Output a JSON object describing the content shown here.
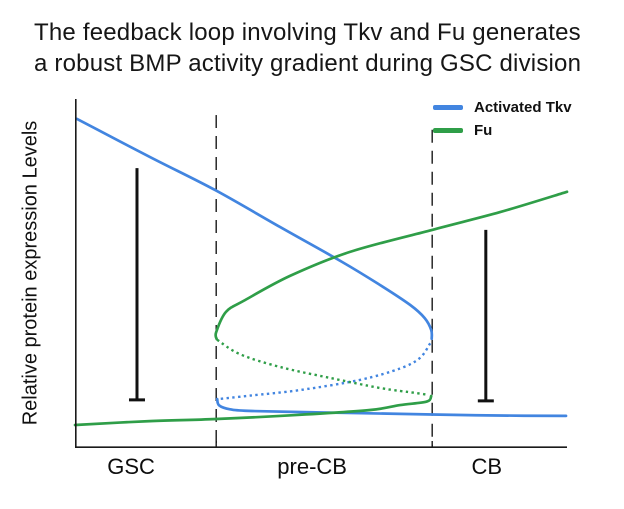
{
  "title": {
    "line1": "The feedback loop involving Tkv and Fu generates",
    "line2": "a robust BMP activity gradient during GSC division"
  },
  "y_axis_label": "Relative protein expression Levels",
  "x_axis": {
    "categories": [
      {
        "label": "GSC",
        "center_pct": 11.4
      },
      {
        "label": "pre-CB",
        "center_pct": 48.2
      },
      {
        "label": "CB",
        "center_pct": 83.7
      }
    ]
  },
  "legend": {
    "position": "top-right",
    "items": [
      {
        "label": "Activated Tkv",
        "color": "#4285e0"
      },
      {
        "label": "Fu",
        "color": "#2f9e48"
      }
    ]
  },
  "colors": {
    "activated_tkv": "#4285e0",
    "fu": "#2f9e48",
    "axis": "#1a1a1a",
    "boundary_dash": "#1a1a1a",
    "range_bar": "#111111",
    "background": "#ffffff"
  },
  "chart_data": {
    "type": "line",
    "title": "The feedback loop involving Tkv and Fu generates a robust BMP activity gradient during GSC division",
    "xlabel": "",
    "ylabel": "Relative protein expression Levels",
    "x_categories": [
      "GSC",
      "pre-CB",
      "CB"
    ],
    "axes_quantitative": false,
    "grid": false,
    "legend_position": "top-right",
    "units_note": "points are percent of plot area: x 0=left axis, 100=right edge; y 0=x-axis, 100=top",
    "stage_boundaries": [
      {
        "x": 28.7,
        "y_top": 95.4
      },
      {
        "x": 72.6,
        "y_top": 91.2
      }
    ],
    "series": [
      {
        "id": "tkv-high-branch",
        "name": "Activated Tkv — high stable branch",
        "legend": "Activated Tkv",
        "color": "#4285e0",
        "style": "solid",
        "points": [
          [
            0.4,
            94.3
          ],
          [
            15.2,
            83.4
          ],
          [
            28.5,
            73.9
          ],
          [
            41.7,
            63.3
          ],
          [
            54.3,
            53.3
          ],
          [
            62.0,
            46.7
          ],
          [
            68.1,
            41.0
          ],
          [
            71.1,
            37.2
          ],
          [
            72.4,
            33.8
          ],
          [
            72.5,
            31.3
          ]
        ]
      },
      {
        "id": "tkv-unstable-branch",
        "name": "Activated Tkv — unstable branch (dotted)",
        "legend": "Activated Tkv",
        "color": "#4285e0",
        "style": "dotted",
        "points": [
          [
            72.2,
            30.0
          ],
          [
            70.1,
            25.8
          ],
          [
            66.1,
            22.8
          ],
          [
            57.9,
            19.5
          ],
          [
            45.7,
            16.6
          ],
          [
            35.6,
            15.0
          ],
          [
            28.9,
            14.0
          ]
        ]
      },
      {
        "id": "tkv-low-branch",
        "name": "Activated Tkv — low stable branch",
        "legend": "Activated Tkv",
        "color": "#4285e0",
        "style": "solid",
        "points": [
          [
            28.9,
            14.0
          ],
          [
            29.3,
            12.2
          ],
          [
            31.5,
            11.1
          ],
          [
            36.0,
            10.6
          ],
          [
            54.0,
            10.1
          ],
          [
            72.6,
            9.6
          ],
          [
            86.0,
            9.3
          ],
          [
            99.8,
            9.2
          ]
        ]
      },
      {
        "id": "fu-low-branch",
        "name": "Fu — low stable branch",
        "legend": "Fu",
        "color": "#2f9e48",
        "style": "solid",
        "points": [
          [
            0.0,
            6.6
          ],
          [
            15.2,
            7.7
          ],
          [
            28.7,
            8.3
          ],
          [
            45.7,
            9.5
          ],
          [
            60.0,
            10.9
          ],
          [
            66.1,
            12.3
          ],
          [
            71.5,
            13.3
          ],
          [
            72.4,
            14.9
          ]
        ]
      },
      {
        "id": "fu-unstable-branch",
        "name": "Fu — unstable branch (dotted)",
        "legend": "Fu",
        "color": "#2f9e48",
        "style": "dotted",
        "points": [
          [
            28.9,
            31.0
          ],
          [
            33.5,
            26.9
          ],
          [
            41.7,
            23.2
          ],
          [
            51.8,
            20.1
          ],
          [
            62.0,
            17.2
          ],
          [
            69.1,
            15.8
          ],
          [
            71.8,
            15.2
          ]
        ]
      },
      {
        "id": "fu-high-branch",
        "name": "Fu — high stable branch",
        "legend": "Fu",
        "color": "#2f9e48",
        "style": "solid",
        "points": [
          [
            28.8,
            31.2
          ],
          [
            28.7,
            33.2
          ],
          [
            30.7,
            39.0
          ],
          [
            34.6,
            42.4
          ],
          [
            43.7,
            49.3
          ],
          [
            55.9,
            56.2
          ],
          [
            72.6,
            62.5
          ],
          [
            86.4,
            67.6
          ],
          [
            100.0,
            73.4
          ]
        ]
      }
    ],
    "annotations": {
      "range_bars": [
        {
          "id": "gsc-range-bar",
          "region": "GSC",
          "x": 12.6,
          "y_top": 80.2,
          "y_bottom": 13.8,
          "cap": "bottom"
        },
        {
          "id": "cb-range-bar",
          "region": "CB",
          "x": 83.5,
          "y_top": 62.5,
          "y_bottom": 13.5,
          "cap": "bottom"
        }
      ]
    }
  }
}
